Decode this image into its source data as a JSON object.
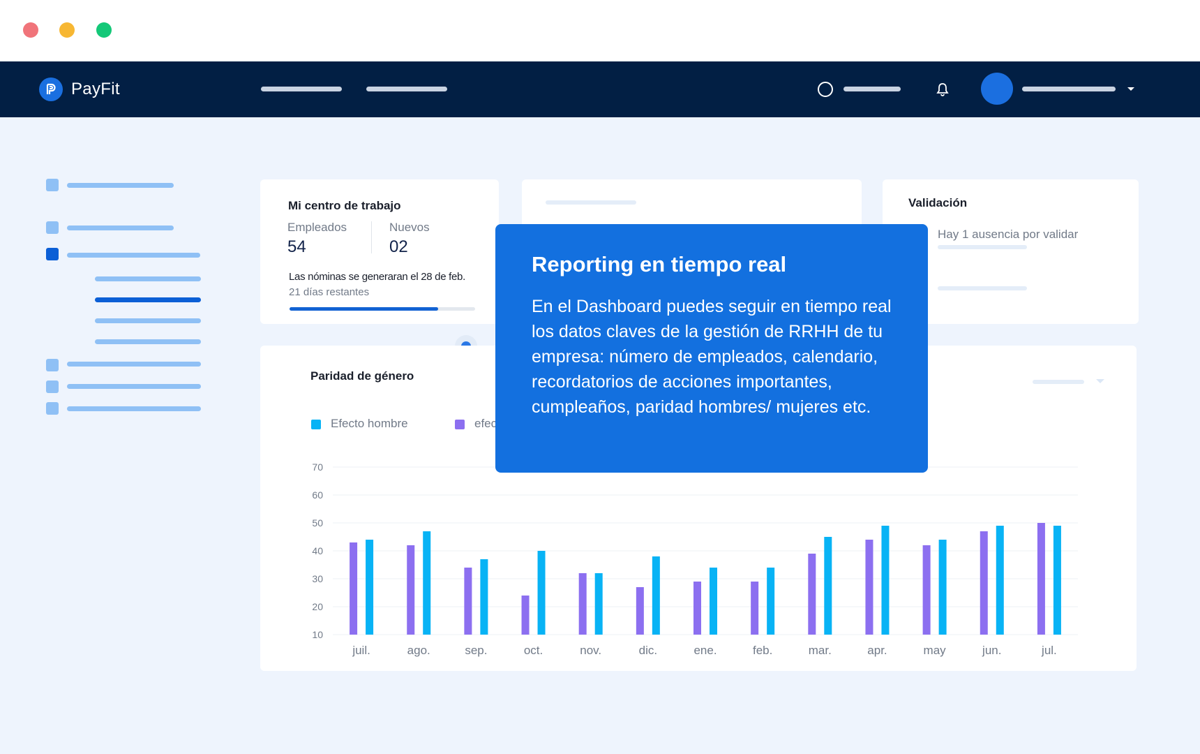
{
  "colors": {
    "nav_bg": "#021f44",
    "page_bg": "#eef4fd",
    "accent_blue": "#1370df",
    "series_hombre": "#08b3f5",
    "series_mujer": "#8c6ff0"
  },
  "window": {
    "controls": [
      "close",
      "minimize",
      "maximize"
    ]
  },
  "topnav": {
    "brand": "PayFit",
    "icons": {
      "logo": "payfit-logo-icon",
      "search": "search-icon",
      "notifications": "bell-icon",
      "menu": "chevron-down-icon"
    }
  },
  "work_center": {
    "title": "Mi centro de trabajo",
    "employees_label": "Empleados",
    "employees_value": "54",
    "new_label": "Nuevos",
    "new_value": "02",
    "payroll_text": "Las nóminas se generaran el 28 de feb.",
    "days_left": "21 días restantes",
    "progress": 0.8
  },
  "validation": {
    "title": "Validación",
    "message": "Hay 1 ausencia por validar"
  },
  "tooltip": {
    "title": "Reporting en tiempo real",
    "body": "En el Dashboard puedes seguir en tiempo real los datos claves de la gestión de RRHH de tu empresa: número de empleados, calendario, recordatorios de acciones importantes, cumpleaños, paridad hombres/ mujeres etc."
  },
  "gender_chart": {
    "title": "Paridad de género",
    "legend": [
      "Efecto hombre",
      "efec"
    ]
  },
  "chart_data": {
    "type": "bar",
    "title": "Paridad de género",
    "categories": [
      "juil.",
      "ago.",
      "sep.",
      "oct.",
      "nov.",
      "dic.",
      "ene.",
      "feb.",
      "mar.",
      "apr.",
      "may",
      "jun.",
      "jul."
    ],
    "series": [
      {
        "name": "efec",
        "color": "#8c6ff0",
        "values": [
          43,
          42,
          34,
          24,
          32,
          27,
          29,
          29,
          39,
          44,
          42,
          47,
          50
        ]
      },
      {
        "name": "Efecto hombre",
        "color": "#08b3f5",
        "values": [
          44,
          47,
          37,
          40,
          32,
          38,
          34,
          34,
          45,
          49,
          44,
          49,
          49
        ]
      }
    ],
    "ylim": [
      10,
      70
    ],
    "yticks": [
      10,
      20,
      30,
      40,
      50,
      60,
      70
    ],
    "grid": true,
    "legend": "top-left"
  }
}
